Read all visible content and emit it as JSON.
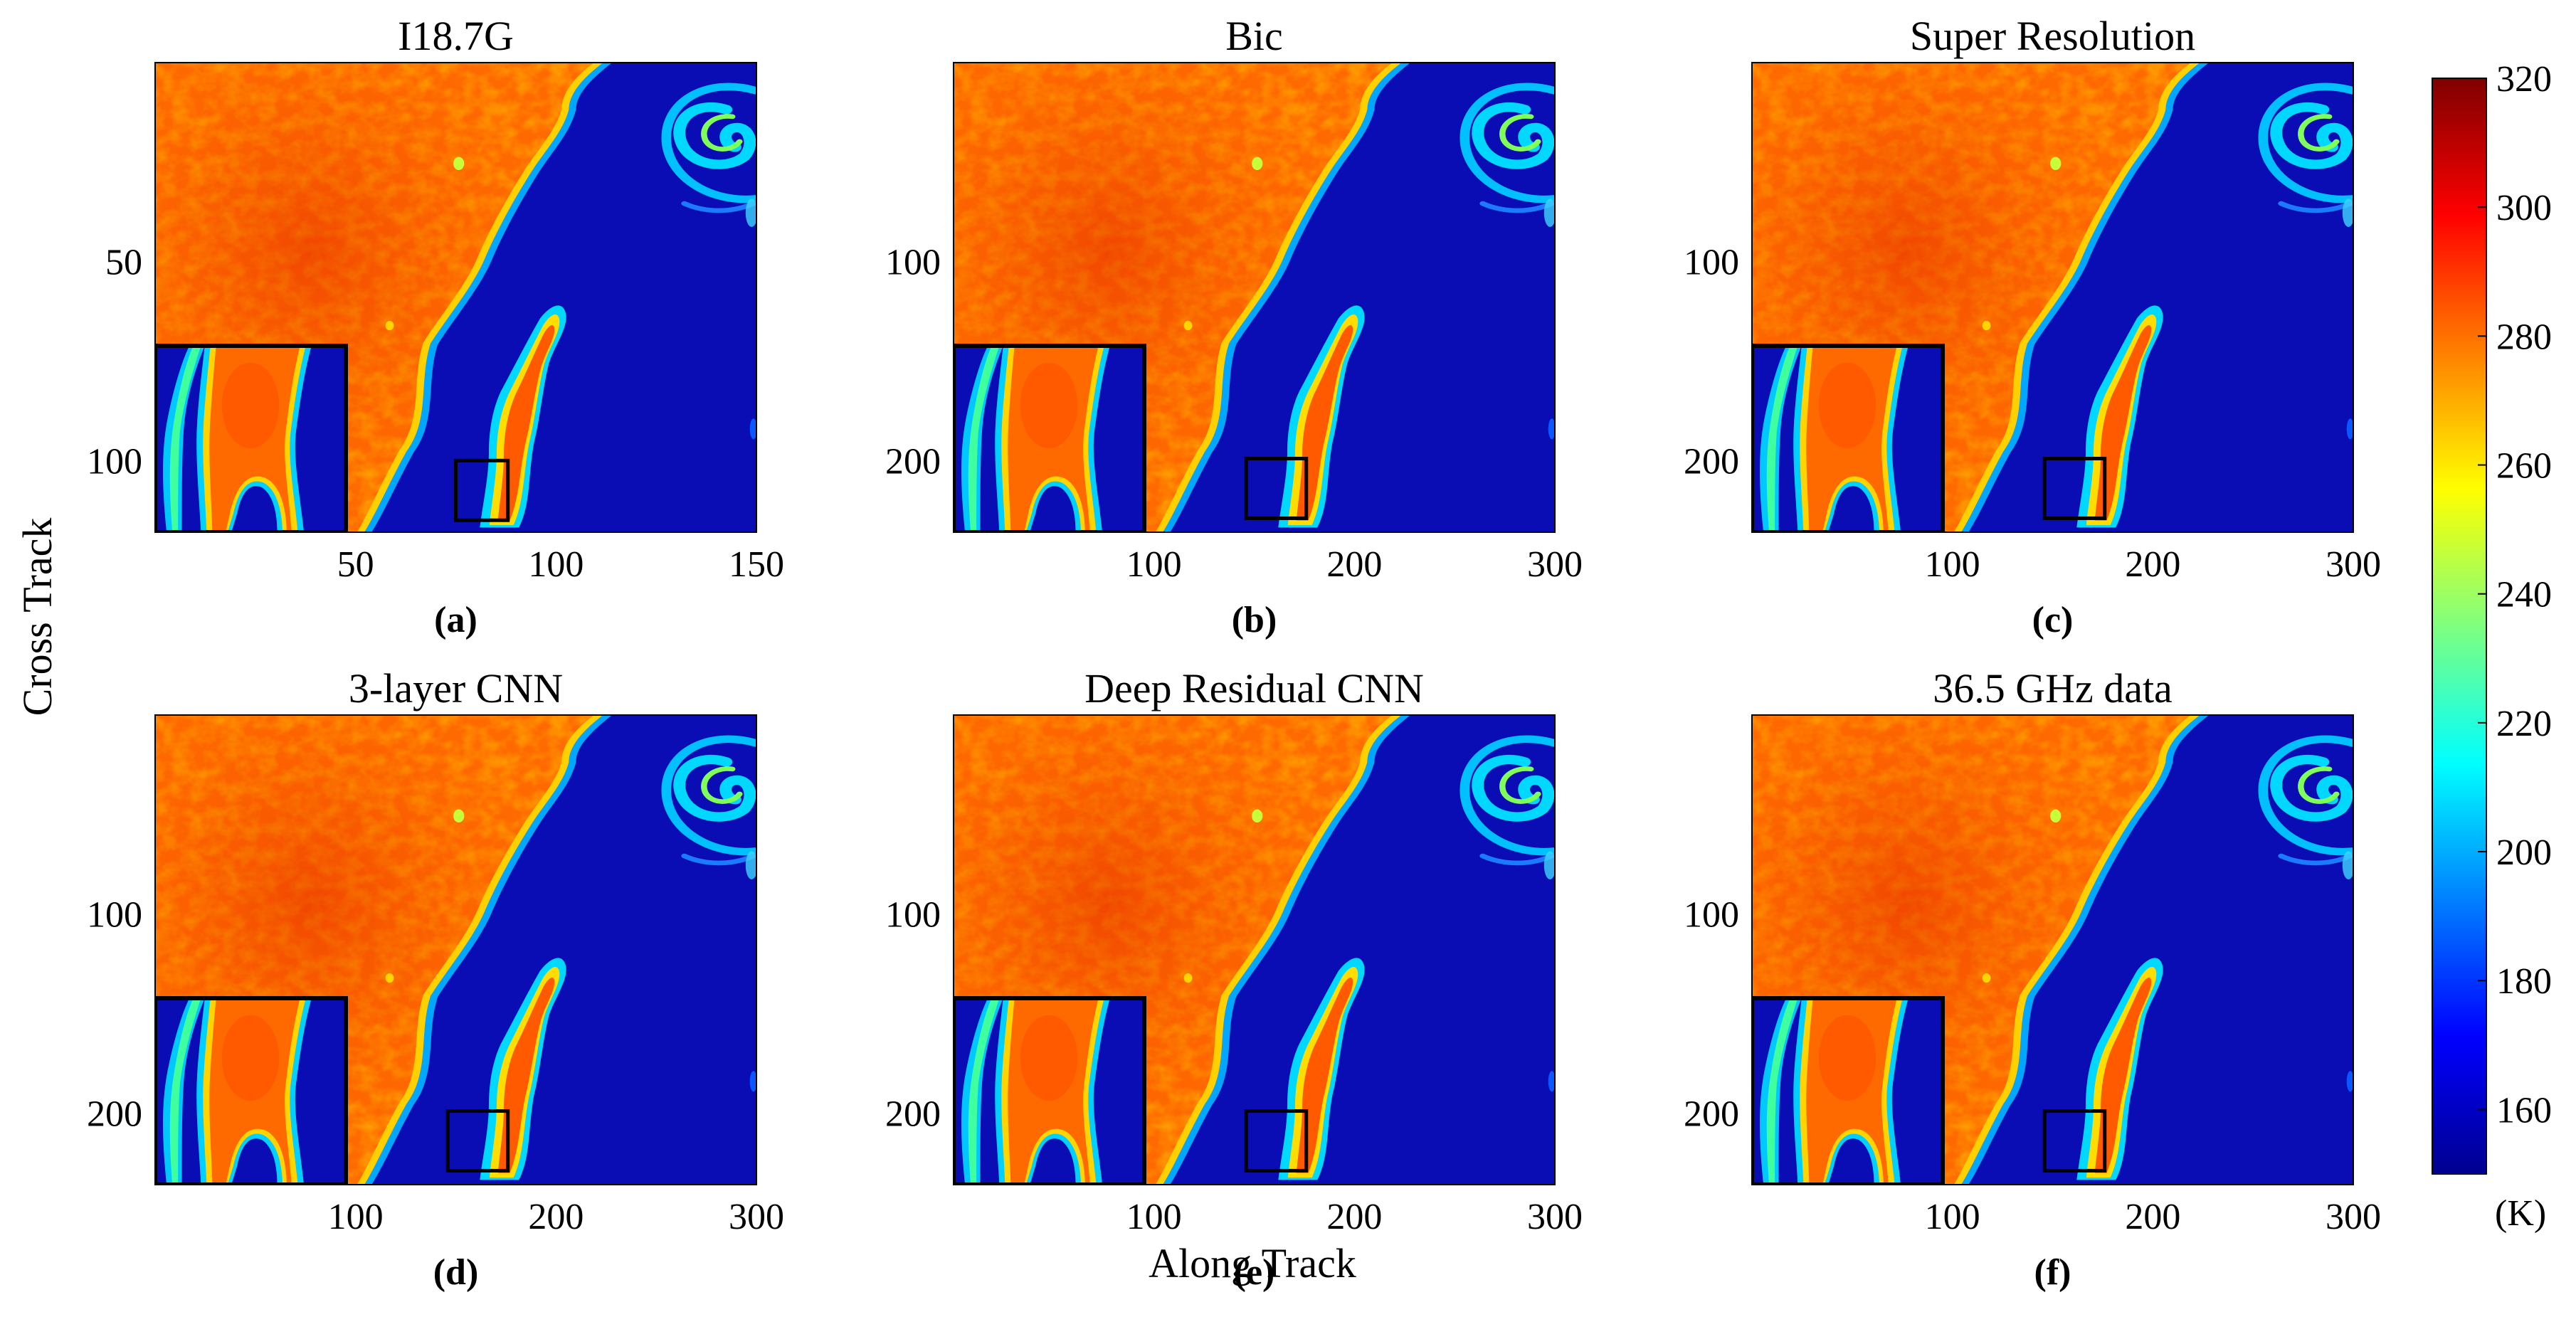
{
  "figure": {
    "x_label": "Along Track",
    "y_label": "Cross Track",
    "colorbar": {
      "ticks": [
        "320",
        "300",
        "280",
        "260",
        "240",
        "220",
        "200",
        "180",
        "160"
      ],
      "unit": "(K)",
      "min": 150,
      "max": 320,
      "colormap": "jet"
    },
    "panels": [
      {
        "title": "I18.7G",
        "label": "(a)",
        "x_ticks": [
          "50",
          "100",
          "150"
        ],
        "y_ticks": [
          "50",
          "100"
        ],
        "x_max": 150,
        "y_max": 118,
        "zoom_box_x": [
          75,
          88
        ],
        "zoom_box_y": [
          100,
          115
        ]
      },
      {
        "title": "Bic",
        "label": "(b)",
        "x_ticks": [
          "100",
          "200",
          "300"
        ],
        "y_ticks": [
          "100",
          "200"
        ],
        "x_max": 300,
        "y_max": 236,
        "zoom_box_x": [
          146,
          176
        ],
        "zoom_box_y": [
          199,
          229
        ]
      },
      {
        "title": "Super Resolution",
        "label": "(c)",
        "x_ticks": [
          "100",
          "200",
          "300"
        ],
        "y_ticks": [
          "100",
          "200"
        ],
        "x_max": 300,
        "y_max": 236,
        "zoom_box_x": [
          146,
          176
        ],
        "zoom_box_y": [
          199,
          229
        ]
      },
      {
        "title": "3-layer CNN",
        "label": "(d)",
        "x_ticks": [
          "100",
          "200",
          "300"
        ],
        "y_ticks": [
          "100",
          "200"
        ],
        "x_max": 300,
        "y_max": 236,
        "zoom_box_x": [
          146,
          176
        ],
        "zoom_box_y": [
          199,
          229
        ]
      },
      {
        "title": "Deep Residual CNN",
        "label": "(e)",
        "x_ticks": [
          "100",
          "200",
          "300"
        ],
        "y_ticks": [
          "100",
          "200"
        ],
        "x_max": 300,
        "y_max": 236,
        "zoom_box_x": [
          146,
          176
        ],
        "zoom_box_y": [
          199,
          229
        ]
      },
      {
        "title": "36.5 GHz data",
        "label": "(f)",
        "x_ticks": [
          "100",
          "200",
          "300"
        ],
        "y_ticks": [
          "100",
          "200"
        ],
        "x_max": 300,
        "y_max": 236,
        "zoom_box_x": [
          146,
          176
        ],
        "zoom_box_y": [
          199,
          229
        ]
      }
    ]
  }
}
